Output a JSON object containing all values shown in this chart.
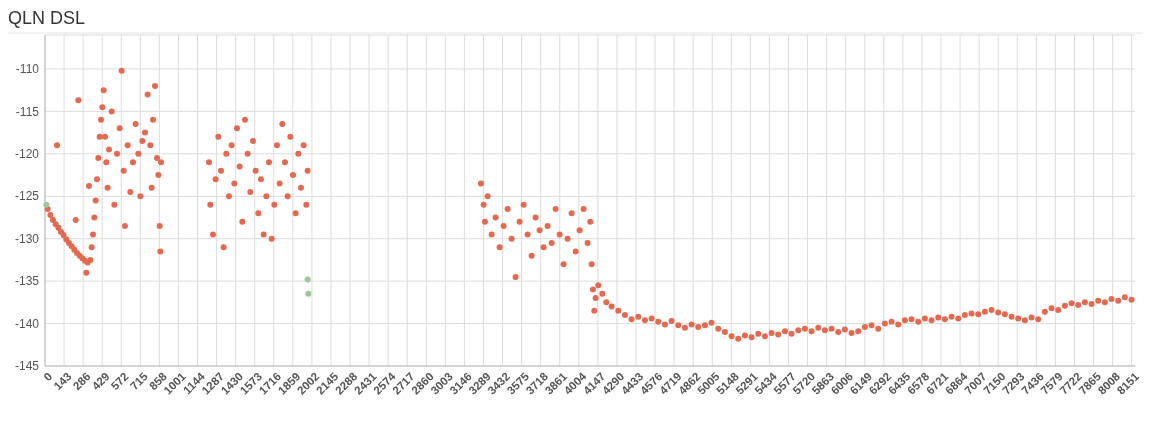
{
  "chart_data": {
    "type": "scatter",
    "title": "QLN DSL",
    "grid": true,
    "marker": "circle",
    "xlim": [
      0,
      8176
    ],
    "ylim": [
      -145,
      -106
    ],
    "xticks": [
      0,
      143,
      286,
      429,
      572,
      715,
      858,
      1001,
      1144,
      1287,
      1430,
      1573,
      1716,
      1859,
      2002,
      2145,
      2288,
      2431,
      2574,
      2717,
      2860,
      3003,
      3146,
      3289,
      3432,
      3575,
      3718,
      3861,
      4004,
      4147,
      4290,
      4433,
      4576,
      4719,
      4862,
      5005,
      5148,
      5291,
      5434,
      5577,
      5720,
      5863,
      6006,
      6149,
      6292,
      6435,
      6578,
      6721,
      6864,
      7007,
      7150,
      7293,
      7436,
      7579,
      7722,
      7865,
      8008,
      8151
    ],
    "yticks": [
      -145,
      -140,
      -135,
      -130,
      -125,
      -120,
      -115,
      -110
    ],
    "series": [
      {
        "color": "#e5694f",
        "x": [
          20,
          40,
          60,
          80,
          100,
          120,
          140,
          160,
          180,
          200,
          220,
          240,
          260,
          280,
          300,
          320,
          340,
          350,
          360,
          370,
          380,
          390,
          400,
          410,
          420,
          430,
          90,
          250,
          230,
          330,
          310,
          440,
          450,
          460,
          470,
          480,
          500,
          520,
          540,
          560,
          575,
          590,
          600,
          620,
          640,
          660,
          680,
          700,
          715,
          730,
          750,
          770,
          790,
          800,
          810,
          825,
          840,
          850,
          860,
          865,
          870,
          1230,
          1240,
          1260,
          1280,
          1300,
          1320,
          1340,
          1360,
          1380,
          1400,
          1420,
          1440,
          1460,
          1480,
          1500,
          1520,
          1540,
          1560,
          1580,
          1600,
          1620,
          1640,
          1660,
          1680,
          1700,
          1720,
          1740,
          1760,
          1780,
          1800,
          1820,
          1840,
          1860,
          1880,
          1900,
          1920,
          1940,
          1960,
          1970,
          3270,
          3290,
          3300,
          3320,
          3350,
          3380,
          3410,
          3440,
          3470,
          3500,
          3530,
          3560,
          3590,
          3620,
          3650,
          3680,
          3710,
          3740,
          3770,
          3800,
          3830,
          3860,
          3890,
          3920,
          3950,
          3980,
          4010,
          4040,
          4070,
          4090,
          4100,
          4110,
          4120,
          4130,
          4150,
          4180,
          4210,
          4250,
          4300,
          4350,
          4400,
          4450,
          4500,
          4550,
          4600,
          4650,
          4700,
          4750,
          4800,
          4850,
          4900,
          4950,
          5000,
          5050,
          5100,
          5150,
          5200,
          5250,
          5300,
          5350,
          5400,
          5450,
          5500,
          5550,
          5600,
          5650,
          5700,
          5750,
          5800,
          5850,
          5900,
          5950,
          6000,
          6050,
          6100,
          6150,
          6200,
          6250,
          6300,
          6350,
          6400,
          6450,
          6500,
          6550,
          6600,
          6650,
          6700,
          6750,
          6800,
          6850,
          6900,
          6950,
          7000,
          7050,
          7100,
          7150,
          7200,
          7250,
          7300,
          7350,
          7400,
          7450,
          7500,
          7550,
          7600,
          7650,
          7700,
          7750,
          7800,
          7850,
          7900,
          7950,
          8000,
          8050,
          8100,
          8150
        ],
        "values": [
          -126.5,
          -127.2,
          -127.8,
          -128.3,
          -128.7,
          -129.2,
          -129.6,
          -130.1,
          -130.5,
          -130.9,
          -131.3,
          -131.7,
          -132,
          -132.3,
          -132.6,
          -132.8,
          -132.5,
          -131,
          -129.5,
          -127.5,
          -125.5,
          -123,
          -120.5,
          -118,
          -116,
          -114.5,
          -119,
          -113.7,
          -127.8,
          -123.8,
          -134,
          -112.5,
          -118,
          -121,
          -124,
          -119.5,
          -115,
          -126,
          -120,
          -117,
          -110.2,
          -122,
          -128.5,
          -119,
          -124.5,
          -121,
          -116.5,
          -120,
          -125,
          -118.5,
          -117.5,
          -113,
          -119,
          -124,
          -116,
          -112,
          -120.5,
          -122.5,
          -128.5,
          -131.5,
          -121,
          -121,
          -126,
          -129.5,
          -123,
          -118,
          -122,
          -131,
          -120,
          -125,
          -119,
          -123.5,
          -117,
          -121.5,
          -128,
          -116,
          -120,
          -124.5,
          -118.5,
          -122,
          -127,
          -123,
          -129.5,
          -125,
          -121,
          -130,
          -126,
          -119,
          -123.5,
          -116.5,
          -121,
          -125,
          -118,
          -122.5,
          -127,
          -120,
          -124,
          -119,
          -126,
          -122,
          -123.5,
          -126,
          -128,
          -125,
          -129.5,
          -127.5,
          -131,
          -128.5,
          -126.5,
          -130,
          -134.5,
          -128,
          -126,
          -129.5,
          -132,
          -127.5,
          -129,
          -131,
          -128.5,
          -130.5,
          -126.5,
          -129.5,
          -133,
          -130,
          -127,
          -131.5,
          -129,
          -126.5,
          -130.5,
          -128,
          -133,
          -136,
          -138.5,
          -137,
          -135.5,
          -136.5,
          -137.5,
          -138,
          -138.5,
          -139,
          -139.5,
          -139.2,
          -139.6,
          -139.4,
          -139.8,
          -140.1,
          -139.7,
          -140.2,
          -140.5,
          -140.1,
          -140.4,
          -140.2,
          -139.9,
          -140.6,
          -141,
          -141.5,
          -141.8,
          -141.4,
          -141.6,
          -141.2,
          -141.5,
          -141.1,
          -141.3,
          -140.9,
          -141.2,
          -140.8,
          -140.6,
          -140.9,
          -140.5,
          -140.8,
          -140.6,
          -141,
          -140.7,
          -141.1,
          -140.9,
          -140.4,
          -140.2,
          -140.6,
          -140,
          -139.8,
          -140.1,
          -139.6,
          -139.5,
          -139.8,
          -139.4,
          -139.6,
          -139.3,
          -139.5,
          -139.2,
          -139.4,
          -139,
          -138.8,
          -138.9,
          -138.6,
          -138.4,
          -138.7,
          -138.9,
          -139.2,
          -139.4,
          -139.6,
          -139.3,
          -139.5,
          -138.6,
          -138.2,
          -138.4,
          -137.9,
          -137.6,
          -137.8,
          -137.5,
          -137.7,
          -137.3,
          -137.5,
          -137.1,
          -137.3,
          -136.9,
          -137.2
        ]
      },
      {
        "color": "#9cc89c",
        "x": [
          10,
          1970,
          1975
        ],
        "values": [
          -126,
          -134.8,
          -136.5
        ]
      }
    ]
  }
}
